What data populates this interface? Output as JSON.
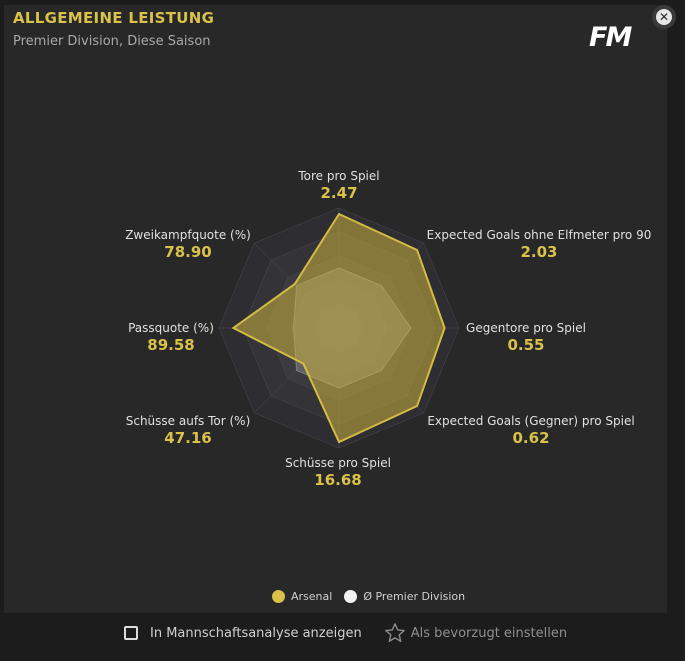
{
  "header": {
    "title": "ALLGEMEINE LEISTUNG",
    "subtitle": "Premier Division, Diese Saison",
    "logo_text": "FM",
    "close_icon": "close-icon"
  },
  "chart_data": {
    "type": "radar",
    "axes": [
      {
        "label": "Tore pro Spiel",
        "value": "2.47"
      },
      {
        "label": "Expected Goals ohne Elfmeter pro 90",
        "value": "2.03"
      },
      {
        "label": "Gegentore pro Spiel",
        "value": "0.55"
      },
      {
        "label": "Expected Goals (Gegner) pro Spiel",
        "value": "0.62"
      },
      {
        "label": "Schüsse pro Spiel",
        "value": "16.68"
      },
      {
        "label": "Schüsse aufs Tor (%)",
        "value": "47.16"
      },
      {
        "label": "Passquote (%)",
        "value": "89.58"
      },
      {
        "label": "Zweikampfquote (%)",
        "value": "78.90"
      }
    ],
    "series": [
      {
        "name": "Arsenal",
        "color": "#c9b13c",
        "normalized": [
          0.95,
          0.92,
          0.88,
          0.92,
          0.95,
          0.42,
          0.88,
          0.52
        ]
      },
      {
        "name": "Ø Premier Division",
        "color": "#8e8e8e",
        "normalized": [
          0.5,
          0.5,
          0.6,
          0.5,
          0.5,
          0.5,
          0.38,
          0.5
        ]
      }
    ],
    "rings": 5
  },
  "legend": {
    "items": [
      {
        "label": "Arsenal",
        "color": "#d9c14a"
      },
      {
        "label": "Ø Premier Division",
        "color": "#f2f2f2"
      }
    ]
  },
  "footer": {
    "checkbox_label": "In Mannschaftsanalyse anzeigen",
    "favorite_label": "Als bevorzugt einstellen",
    "favorite_icon": "star-icon"
  }
}
